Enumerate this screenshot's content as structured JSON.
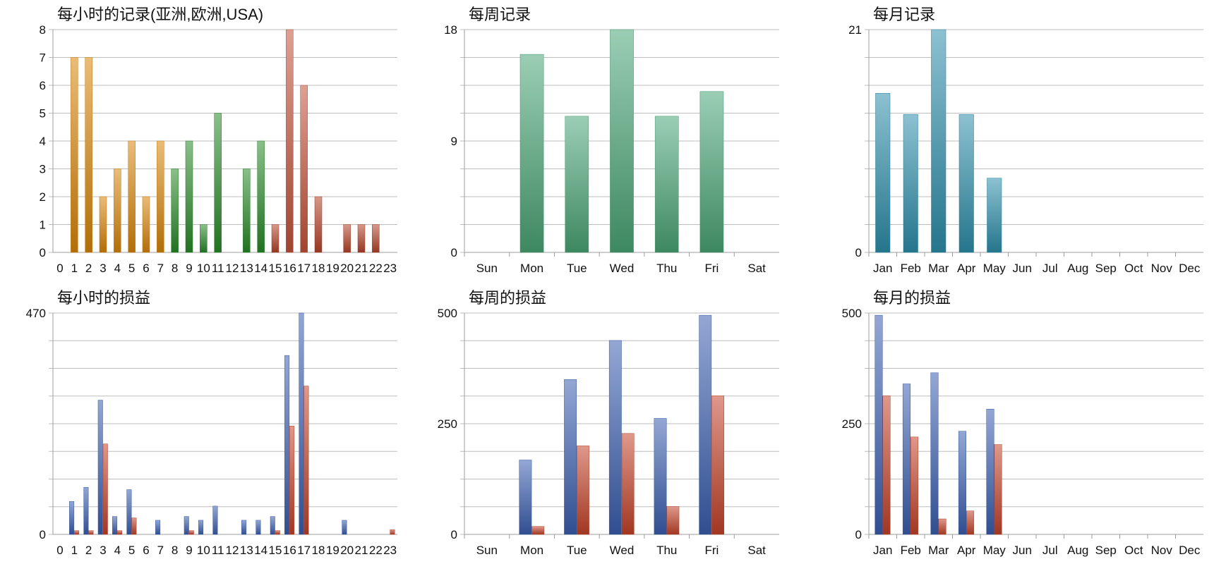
{
  "chart_data": [
    {
      "type": "bar",
      "title": "每小时的记录(亚洲,欧洲,USA)",
      "categories": [
        "0",
        "1",
        "2",
        "3",
        "4",
        "5",
        "6",
        "7",
        "8",
        "9",
        "10",
        "11",
        "12",
        "13",
        "14",
        "15",
        "16",
        "17",
        "18",
        "19",
        "20",
        "21",
        "22",
        "23"
      ],
      "values": [
        0,
        7,
        7,
        2,
        3,
        4,
        2,
        4,
        3,
        4,
        1,
        5,
        0,
        3,
        4,
        1,
        8,
        6,
        2,
        0,
        1,
        1,
        1,
        0
      ],
      "bar_colors": [
        "#d9860a",
        "#d9860a",
        "#d9860a",
        "#d9860a",
        "#d9860a",
        "#d9860a",
        "#d9860a",
        "#d9860a",
        "#2a8a2a",
        "#2a8a2a",
        "#2a8a2a",
        "#2a8a2a",
        "#2a8a2a",
        "#2a8a2a",
        "#2a8a2a",
        "#b5432a",
        "#c4533a",
        "#c4533a",
        "#b5432a",
        "#b5432a",
        "#b5432a",
        "#b5432a",
        "#b5432a",
        "#b5432a"
      ],
      "yticks": [
        0,
        1,
        2,
        3,
        4,
        5,
        6,
        7,
        8
      ],
      "ylim": [
        0,
        8
      ],
      "grid": true
    },
    {
      "type": "bar",
      "title": "每周记录",
      "categories": [
        "Sun",
        "Mon",
        "Tue",
        "Wed",
        "Thu",
        "Fri",
        "Sat"
      ],
      "values": [
        0,
        16,
        11,
        18,
        11,
        13,
        0
      ],
      "color": "#4aa676",
      "yticks": [
        0,
        9,
        18
      ],
      "ylim": [
        0,
        18
      ],
      "grid": true
    },
    {
      "type": "bar",
      "title": "每月记录",
      "categories": [
        "Jan",
        "Feb",
        "Mar",
        "Apr",
        "May",
        "Jun",
        "Jul",
        "Aug",
        "Sep",
        "Oct",
        "Nov",
        "Dec"
      ],
      "values": [
        15,
        13,
        21,
        13,
        7,
        0,
        0,
        0,
        0,
        0,
        0,
        0
      ],
      "color": "#2d8fab",
      "yticks": [
        0,
        21
      ],
      "ylim": [
        0,
        21
      ],
      "grid": true
    },
    {
      "type": "bar",
      "title": "每小时的损益",
      "categories": [
        "0",
        "1",
        "2",
        "3",
        "4",
        "5",
        "6",
        "7",
        "8",
        "9",
        "10",
        "11",
        "12",
        "13",
        "14",
        "15",
        "16",
        "17",
        "18",
        "19",
        "20",
        "21",
        "22",
        "23"
      ],
      "series": [
        {
          "values": [
            0,
            70,
            100,
            285,
            38,
            95,
            0,
            30,
            0,
            38,
            30,
            60,
            0,
            30,
            30,
            38,
            380,
            470,
            0,
            0,
            30,
            0,
            0,
            0
          ],
          "color": "#3a5fb0"
        },
        {
          "values": [
            0,
            8,
            8,
            192,
            8,
            35,
            0,
            0,
            0,
            8,
            0,
            0,
            0,
            0,
            0,
            8,
            230,
            315,
            0,
            0,
            0,
            0,
            0,
            10
          ],
          "color": "#c4432a"
        }
      ],
      "yticks": [
        0,
        470
      ],
      "ylim": [
        0,
        470
      ],
      "grid": true
    },
    {
      "type": "bar",
      "title": "每周的损益",
      "categories": [
        "Sun",
        "Mon",
        "Tue",
        "Wed",
        "Thu",
        "Fri",
        "Sat"
      ],
      "series": [
        {
          "values": [
            0,
            168,
            350,
            438,
            262,
            495,
            0
          ],
          "color": "#3a5fb0"
        },
        {
          "values": [
            0,
            18,
            200,
            228,
            63,
            313,
            0
          ],
          "color": "#c4432a"
        }
      ],
      "yticks": [
        0,
        250,
        500
      ],
      "ylim": [
        0,
        500
      ],
      "grid": true
    },
    {
      "type": "bar",
      "title": "每月的损益",
      "categories": [
        "Jan",
        "Feb",
        "Mar",
        "Apr",
        "May",
        "Jun",
        "Jul",
        "Aug",
        "Sep",
        "Oct",
        "Nov",
        "Dec"
      ],
      "series": [
        {
          "values": [
            495,
            340,
            365,
            233,
            283,
            0,
            0,
            0,
            0,
            0,
            0,
            0
          ],
          "color": "#3a5fb0"
        },
        {
          "values": [
            313,
            220,
            35,
            53,
            203,
            0,
            0,
            0,
            0,
            0,
            0,
            0
          ],
          "color": "#c4432a"
        }
      ],
      "yticks": [
        0,
        250,
        500
      ],
      "ylim": [
        0,
        500
      ],
      "grid": true
    }
  ]
}
